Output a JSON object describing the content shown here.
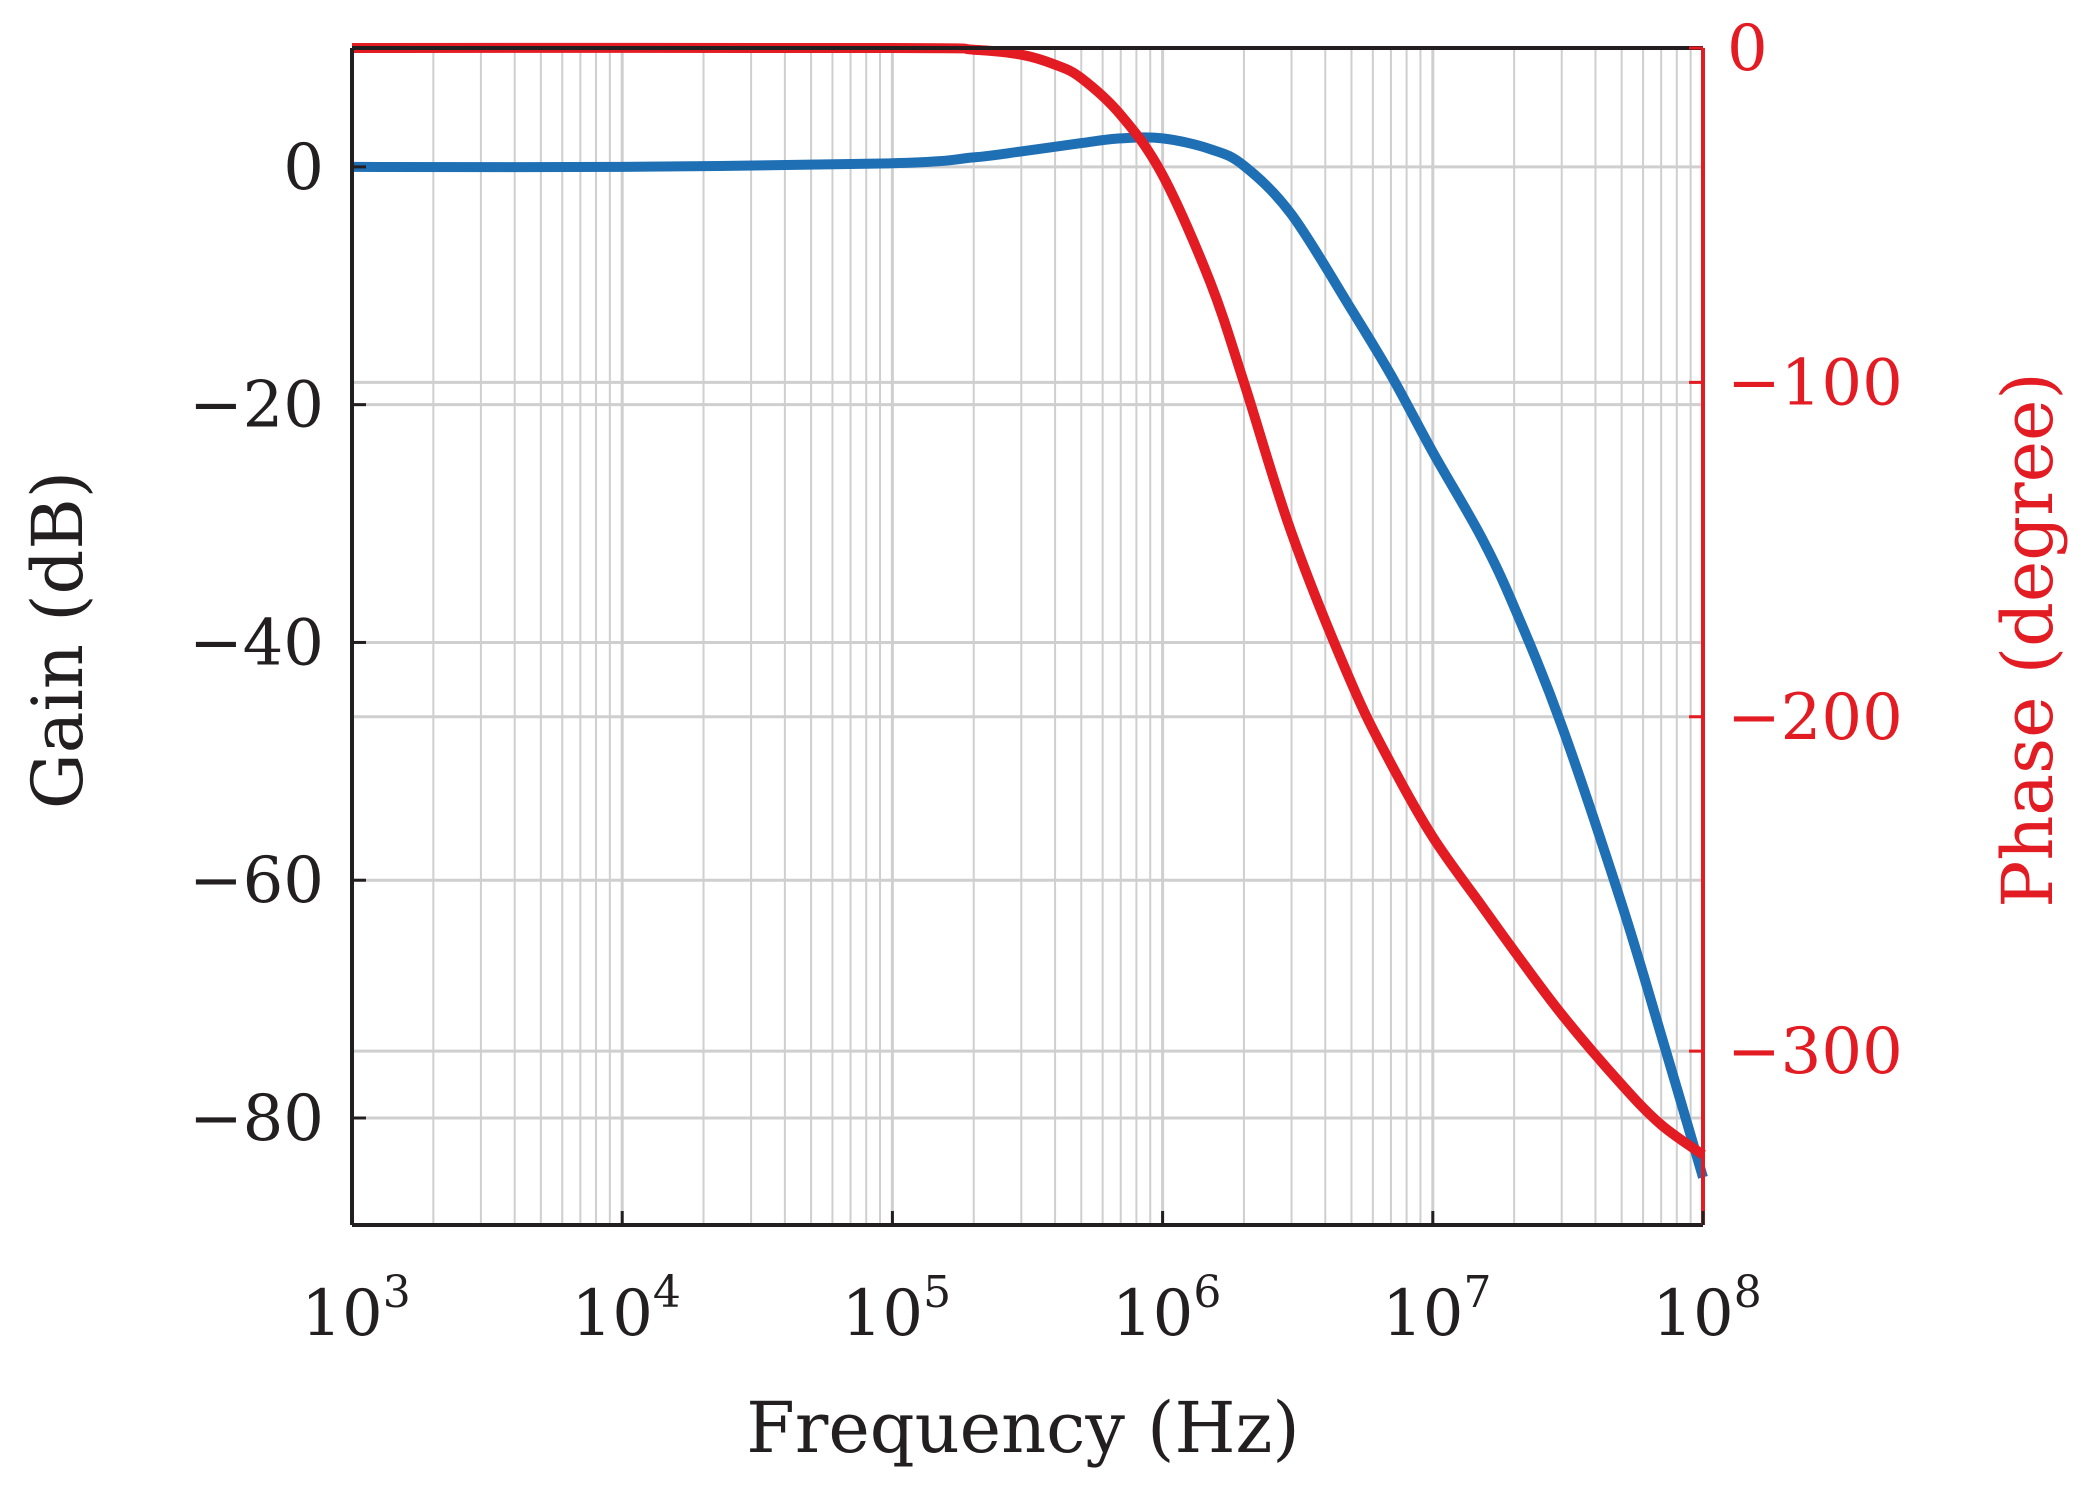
{
  "chart_data": {
    "type": "line",
    "title": "",
    "xlabel": "Frequency (Hz)",
    "ylabel": "Gain (dB)",
    "y2label": "Phase (degree)",
    "xscale": "log",
    "xlim": [
      1000,
      100000000
    ],
    "ylim": [
      -89,
      10
    ],
    "y2lim": [
      -352,
      0
    ],
    "xticks": [
      {
        "base": "10",
        "exp": "3",
        "value": 1000
      },
      {
        "base": "10",
        "exp": "4",
        "value": 10000
      },
      {
        "base": "10",
        "exp": "5",
        "value": 100000
      },
      {
        "base": "10",
        "exp": "6",
        "value": 1000000
      },
      {
        "base": "10",
        "exp": "7",
        "value": 10000000
      },
      {
        "base": "10",
        "exp": "8",
        "value": 100000000
      }
    ],
    "yticks": [
      {
        "value": 0,
        "label": "0"
      },
      {
        "value": -20,
        "label": "−20"
      },
      {
        "value": -40,
        "label": "−40"
      },
      {
        "value": -60,
        "label": "−60"
      },
      {
        "value": -80,
        "label": "−80"
      }
    ],
    "y2ticks": [
      {
        "value": 0,
        "label": "0"
      },
      {
        "value": -100,
        "label": "−100"
      },
      {
        "value": -200,
        "label": "−200"
      },
      {
        "value": -300,
        "label": "−300"
      }
    ],
    "grid": true,
    "series": [
      {
        "name": "Gain",
        "axis": "left",
        "color": "#1f6fb4",
        "x": [
          1000,
          10000,
          100000,
          200000,
          300000,
          500000,
          700000,
          1000000,
          1500000,
          2000000,
          3000000,
          5000000,
          7000000,
          10000000,
          15000000,
          20000000,
          30000000,
          50000000,
          70000000,
          100000000
        ],
        "y": [
          0,
          0,
          0.3,
          0.8,
          1.3,
          2.0,
          2.4,
          2.4,
          1.5,
          0.1,
          -4,
          -12,
          -17.5,
          -24,
          -31,
          -37,
          -47,
          -62,
          -73,
          -85
        ]
      },
      {
        "name": "Phase",
        "axis": "right",
        "color": "#e31b23",
        "x": [
          1000,
          100000,
          200000,
          300000,
          400000,
          500000,
          700000,
          1000000,
          1500000,
          2000000,
          3000000,
          5000000,
          7000000,
          10000000,
          15000000,
          20000000,
          30000000,
          50000000,
          70000000,
          100000000
        ],
        "y": [
          0,
          0,
          -0.5,
          -2,
          -5,
          -9,
          -20,
          -38,
          -70,
          -100,
          -145,
          -190,
          -214,
          -236,
          -256,
          -270,
          -289,
          -310,
          -322,
          -331
        ]
      }
    ]
  }
}
